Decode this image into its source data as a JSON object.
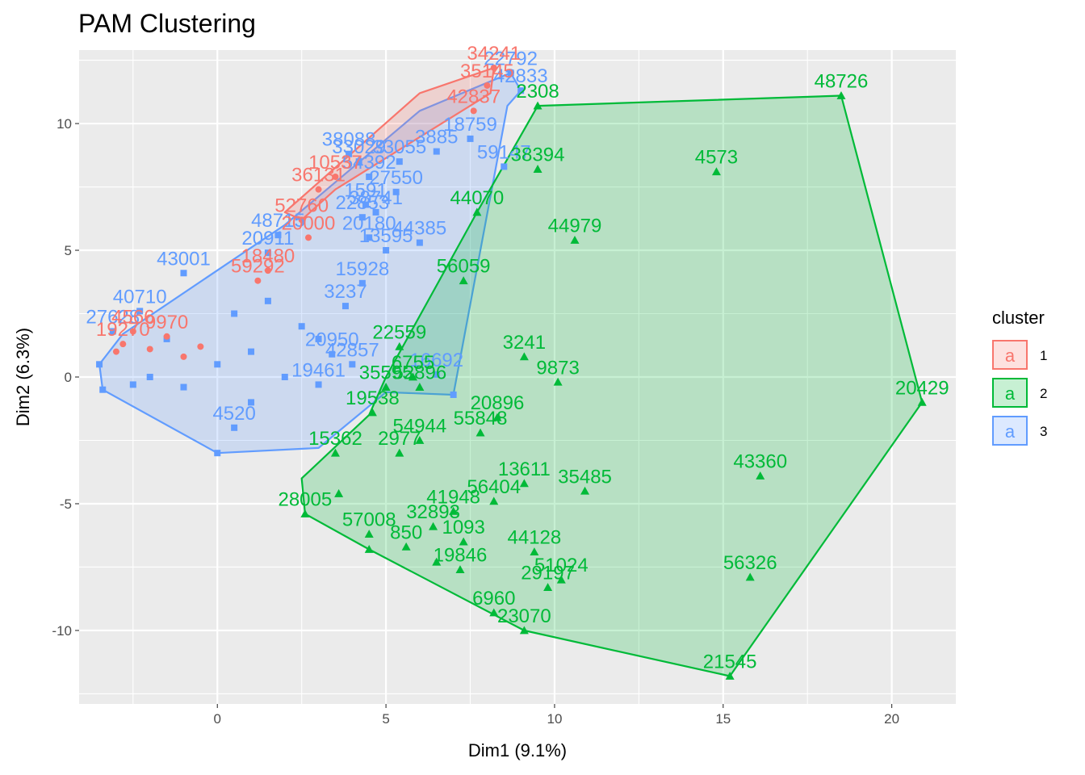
{
  "chart_data": {
    "type": "scatter",
    "title": "PAM Clustering",
    "xlabel": "Dim1 (9.1%)",
    "ylabel": "Dim2 (6.3%)",
    "xlim": [
      -4.1,
      21.9
    ],
    "ylim": [
      -12.9,
      12.9
    ],
    "x_ticks": [
      0,
      5,
      10,
      15,
      20
    ],
    "y_ticks": [
      -10,
      -5,
      0,
      5,
      10
    ],
    "grid": true,
    "legend": {
      "title": "cluster",
      "position": "right",
      "entries": [
        {
          "label": "1",
          "key_glyph": "a",
          "color": "#F8766D",
          "fill": "#F8766D"
        },
        {
          "label": "2",
          "key_glyph": "a",
          "color": "#00BA38",
          "fill": "#00BA38"
        },
        {
          "label": "3",
          "key_glyph": "a",
          "color": "#619CFF",
          "fill": "#619CFF"
        }
      ]
    },
    "series": [
      {
        "name": "1",
        "color": "#F8766D",
        "shape": "circle",
        "hull": [
          [
            8.2,
            12.2
          ],
          [
            8.1,
            11.2
          ],
          [
            3.5,
            7.4
          ],
          [
            2.5,
            6.2
          ],
          [
            2.0,
            6.5
          ],
          [
            6.0,
            11.2
          ]
        ],
        "points": [
          {
            "x": 8.2,
            "y": 12.2,
            "label": "34241"
          },
          {
            "x": 8.0,
            "y": 11.5,
            "label": "35145"
          },
          {
            "x": 7.6,
            "y": 10.5,
            "label": "42837"
          },
          {
            "x": 3.0,
            "y": 7.4,
            "label": "36131"
          },
          {
            "x": 3.5,
            "y": 7.9,
            "label": "10537"
          },
          {
            "x": 2.5,
            "y": 6.2,
            "label": "52760"
          },
          {
            "x": 2.7,
            "y": 5.5,
            "label": "20000"
          },
          {
            "x": 1.5,
            "y": 4.2,
            "label": "18480"
          },
          {
            "x": 1.2,
            "y": 3.8,
            "label": "59292"
          },
          {
            "x": -2.5,
            "y": 1.8,
            "label": "4566"
          },
          {
            "x": -2.8,
            "y": 1.3,
            "label": "19270"
          },
          {
            "x": -3.0,
            "y": 1.0,
            "label": ""
          },
          {
            "x": -1.5,
            "y": 1.6,
            "label": "9970"
          },
          {
            "x": -0.5,
            "y": 1.2,
            "label": ""
          },
          {
            "x": -1.0,
            "y": 0.8,
            "label": ""
          },
          {
            "x": -2.0,
            "y": 1.1,
            "label": ""
          }
        ]
      },
      {
        "name": "2",
        "color": "#00BA38",
        "shape": "triangle",
        "hull": [
          [
            18.5,
            11.1
          ],
          [
            20.9,
            -1.0
          ],
          [
            15.2,
            -11.8
          ],
          [
            9.1,
            -10.0
          ],
          [
            4.5,
            -6.8
          ],
          [
            2.6,
            -5.4
          ],
          [
            2.5,
            -4.0
          ],
          [
            4.5,
            -1.5
          ],
          [
            5.0,
            0.0
          ],
          [
            7.7,
            6.5
          ],
          [
            9.5,
            10.7
          ]
        ],
        "points": [
          {
            "x": 18.5,
            "y": 11.1,
            "label": "48726"
          },
          {
            "x": 9.5,
            "y": 10.7,
            "label": "2308"
          },
          {
            "x": 14.8,
            "y": 8.1,
            "label": "4573"
          },
          {
            "x": 9.5,
            "y": 8.2,
            "label": "38394"
          },
          {
            "x": 7.7,
            "y": 6.5,
            "label": "44070"
          },
          {
            "x": 10.6,
            "y": 5.4,
            "label": "44979"
          },
          {
            "x": 7.3,
            "y": 3.8,
            "label": "56059"
          },
          {
            "x": 20.9,
            "y": -1.0,
            "label": "20429"
          },
          {
            "x": 9.1,
            "y": 0.8,
            "label": "3241"
          },
          {
            "x": 10.1,
            "y": -0.2,
            "label": "9873"
          },
          {
            "x": 5.4,
            "y": 1.2,
            "label": "22559"
          },
          {
            "x": 5.8,
            "y": 0.0,
            "label": "6755"
          },
          {
            "x": 6.0,
            "y": -0.4,
            "label": "52896"
          },
          {
            "x": 5.0,
            "y": -0.4,
            "label": "35595"
          },
          {
            "x": 4.6,
            "y": -1.4,
            "label": "19538"
          },
          {
            "x": 8.3,
            "y": -1.6,
            "label": "20896"
          },
          {
            "x": 7.8,
            "y": -2.2,
            "label": "55848"
          },
          {
            "x": 6.0,
            "y": -2.5,
            "label": "54944"
          },
          {
            "x": 5.4,
            "y": -3.0,
            "label": "2977"
          },
          {
            "x": 3.5,
            "y": -3.0,
            "label": "15362"
          },
          {
            "x": 9.1,
            "y": -4.2,
            "label": "13611"
          },
          {
            "x": 10.9,
            "y": -4.5,
            "label": "35485"
          },
          {
            "x": 16.1,
            "y": -3.9,
            "label": "43360"
          },
          {
            "x": 8.2,
            "y": -4.9,
            "label": "56404"
          },
          {
            "x": 7.0,
            "y": -5.3,
            "label": "41948"
          },
          {
            "x": 2.6,
            "y": -5.4,
            "label": "28005"
          },
          {
            "x": 3.6,
            "y": -4.6,
            "label": ""
          },
          {
            "x": 4.5,
            "y": -6.2,
            "label": "57008"
          },
          {
            "x": 6.4,
            "y": -5.9,
            "label": "32893"
          },
          {
            "x": 7.3,
            "y": -6.5,
            "label": "1093"
          },
          {
            "x": 5.6,
            "y": -6.7,
            "label": "850"
          },
          {
            "x": 9.4,
            "y": -6.9,
            "label": "44128"
          },
          {
            "x": 7.2,
            "y": -7.6,
            "label": "19846"
          },
          {
            "x": 10.2,
            "y": -8.0,
            "label": "51024"
          },
          {
            "x": 9.8,
            "y": -8.3,
            "label": "29197"
          },
          {
            "x": 15.8,
            "y": -7.9,
            "label": "56326"
          },
          {
            "x": 8.2,
            "y": -9.3,
            "label": "6960"
          },
          {
            "x": 9.1,
            "y": -10.0,
            "label": "23070"
          },
          {
            "x": 15.2,
            "y": -11.8,
            "label": "21545"
          },
          {
            "x": 4.5,
            "y": -6.8,
            "label": ""
          },
          {
            "x": 6.5,
            "y": -7.3,
            "label": ""
          }
        ]
      },
      {
        "name": "3",
        "color": "#619CFF",
        "shape": "square",
        "hull": [
          [
            8.7,
            12.0
          ],
          [
            9.0,
            11.3
          ],
          [
            8.6,
            10.7
          ],
          [
            7.0,
            -0.7
          ],
          [
            5.0,
            -0.6
          ],
          [
            3.0,
            -2.8
          ],
          [
            0.0,
            -3.0
          ],
          [
            -3.4,
            -0.5
          ],
          [
            -3.5,
            0.5
          ],
          [
            -2.8,
            1.7
          ],
          [
            2.0,
            6.0
          ],
          [
            6.0,
            10.5
          ]
        ],
        "points": [
          {
            "x": 8.7,
            "y": 12.0,
            "label": "22792"
          },
          {
            "x": 9.0,
            "y": 11.3,
            "label": "42833"
          },
          {
            "x": 7.5,
            "y": 9.4,
            "label": "18759"
          },
          {
            "x": 6.5,
            "y": 8.9,
            "label": "3885"
          },
          {
            "x": 5.4,
            "y": 8.5,
            "label": "33055"
          },
          {
            "x": 3.9,
            "y": 8.8,
            "label": "38088"
          },
          {
            "x": 4.2,
            "y": 8.5,
            "label": "33029"
          },
          {
            "x": 8.5,
            "y": 8.3,
            "label": "59147"
          },
          {
            "x": 4.5,
            "y": 7.9,
            "label": "54392"
          },
          {
            "x": 5.3,
            "y": 7.3,
            "label": "27550"
          },
          {
            "x": 4.4,
            "y": 6.8,
            "label": "1591"
          },
          {
            "x": 4.7,
            "y": 6.5,
            "label": "38741"
          },
          {
            "x": 4.3,
            "y": 6.3,
            "label": "22853"
          },
          {
            "x": 1.8,
            "y": 5.6,
            "label": "48715"
          },
          {
            "x": 4.5,
            "y": 5.5,
            "label": "20180"
          },
          {
            "x": 6.0,
            "y": 5.3,
            "label": "44385"
          },
          {
            "x": 5.0,
            "y": 5.0,
            "label": "13595"
          },
          {
            "x": 1.5,
            "y": 4.9,
            "label": "20911"
          },
          {
            "x": -1.0,
            "y": 4.1,
            "label": "43001"
          },
          {
            "x": 4.3,
            "y": 3.7,
            "label": "15928"
          },
          {
            "x": -2.3,
            "y": 2.6,
            "label": "40710"
          },
          {
            "x": -3.1,
            "y": 1.8,
            "label": "27628"
          },
          {
            "x": 3.8,
            "y": 2.8,
            "label": "3237"
          },
          {
            "x": 3.4,
            "y": 0.9,
            "label": "20950"
          },
          {
            "x": 4.0,
            "y": 0.5,
            "label": "42857"
          },
          {
            "x": 6.5,
            "y": 0.1,
            "label": "16692"
          },
          {
            "x": 3.0,
            "y": -0.3,
            "label": "19461"
          },
          {
            "x": 0.5,
            "y": -2.0,
            "label": "4520"
          },
          {
            "x": 7.0,
            "y": -0.7,
            "label": ""
          },
          {
            "x": 0.0,
            "y": -3.0,
            "label": ""
          },
          {
            "x": -3.4,
            "y": -0.5,
            "label": ""
          },
          {
            "x": -3.5,
            "y": 0.5,
            "label": ""
          },
          {
            "x": -2.0,
            "y": 0.0,
            "label": ""
          },
          {
            "x": -1.0,
            "y": -0.4,
            "label": ""
          },
          {
            "x": 0.0,
            "y": 0.5,
            "label": ""
          },
          {
            "x": 1.0,
            "y": 1.0,
            "label": ""
          },
          {
            "x": 2.0,
            "y": 0.0,
            "label": ""
          },
          {
            "x": 0.5,
            "y": 2.5,
            "label": ""
          },
          {
            "x": -1.5,
            "y": 1.5,
            "label": ""
          },
          {
            "x": 1.0,
            "y": -1.0,
            "label": ""
          },
          {
            "x": 2.5,
            "y": 2.0,
            "label": ""
          },
          {
            "x": -2.5,
            "y": -0.3,
            "label": ""
          },
          {
            "x": 3.0,
            "y": 1.5,
            "label": ""
          },
          {
            "x": 1.5,
            "y": 3.0,
            "label": ""
          }
        ]
      }
    ]
  }
}
